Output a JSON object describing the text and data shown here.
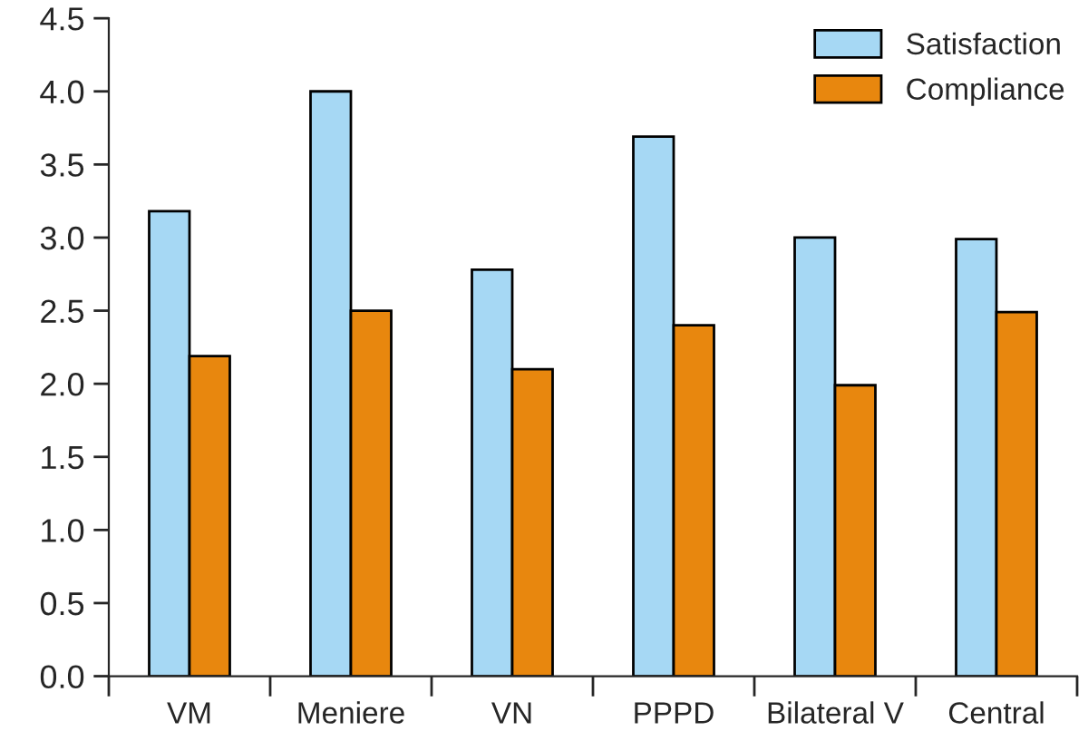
{
  "chart_data": {
    "type": "bar",
    "categories": [
      "VM",
      "Meniere",
      "VN",
      "PPPD",
      "Bilateral V",
      "Central"
    ],
    "series": [
      {
        "name": "Satisfaction",
        "color": "#a6d8f4",
        "values": [
          3.18,
          4.0,
          2.78,
          3.69,
          3.0,
          2.99
        ]
      },
      {
        "name": "Compliance",
        "color": "#e8870e",
        "values": [
          2.19,
          2.5,
          2.1,
          2.4,
          1.99,
          2.49
        ]
      }
    ],
    "ylim": [
      0,
      4.5
    ],
    "yticks": [
      {
        "value": 0,
        "label": "0.0"
      },
      0.5,
      {
        "value": 1,
        "label": "1.0"
      },
      1.5,
      {
        "value": 2,
        "label": "2.0"
      },
      2.5,
      {
        "value": 3,
        "label": "3.0"
      },
      3.5,
      {
        "value": 4,
        "label": "4.0"
      },
      4.5
    ],
    "grid": false,
    "legend": "top right"
  }
}
